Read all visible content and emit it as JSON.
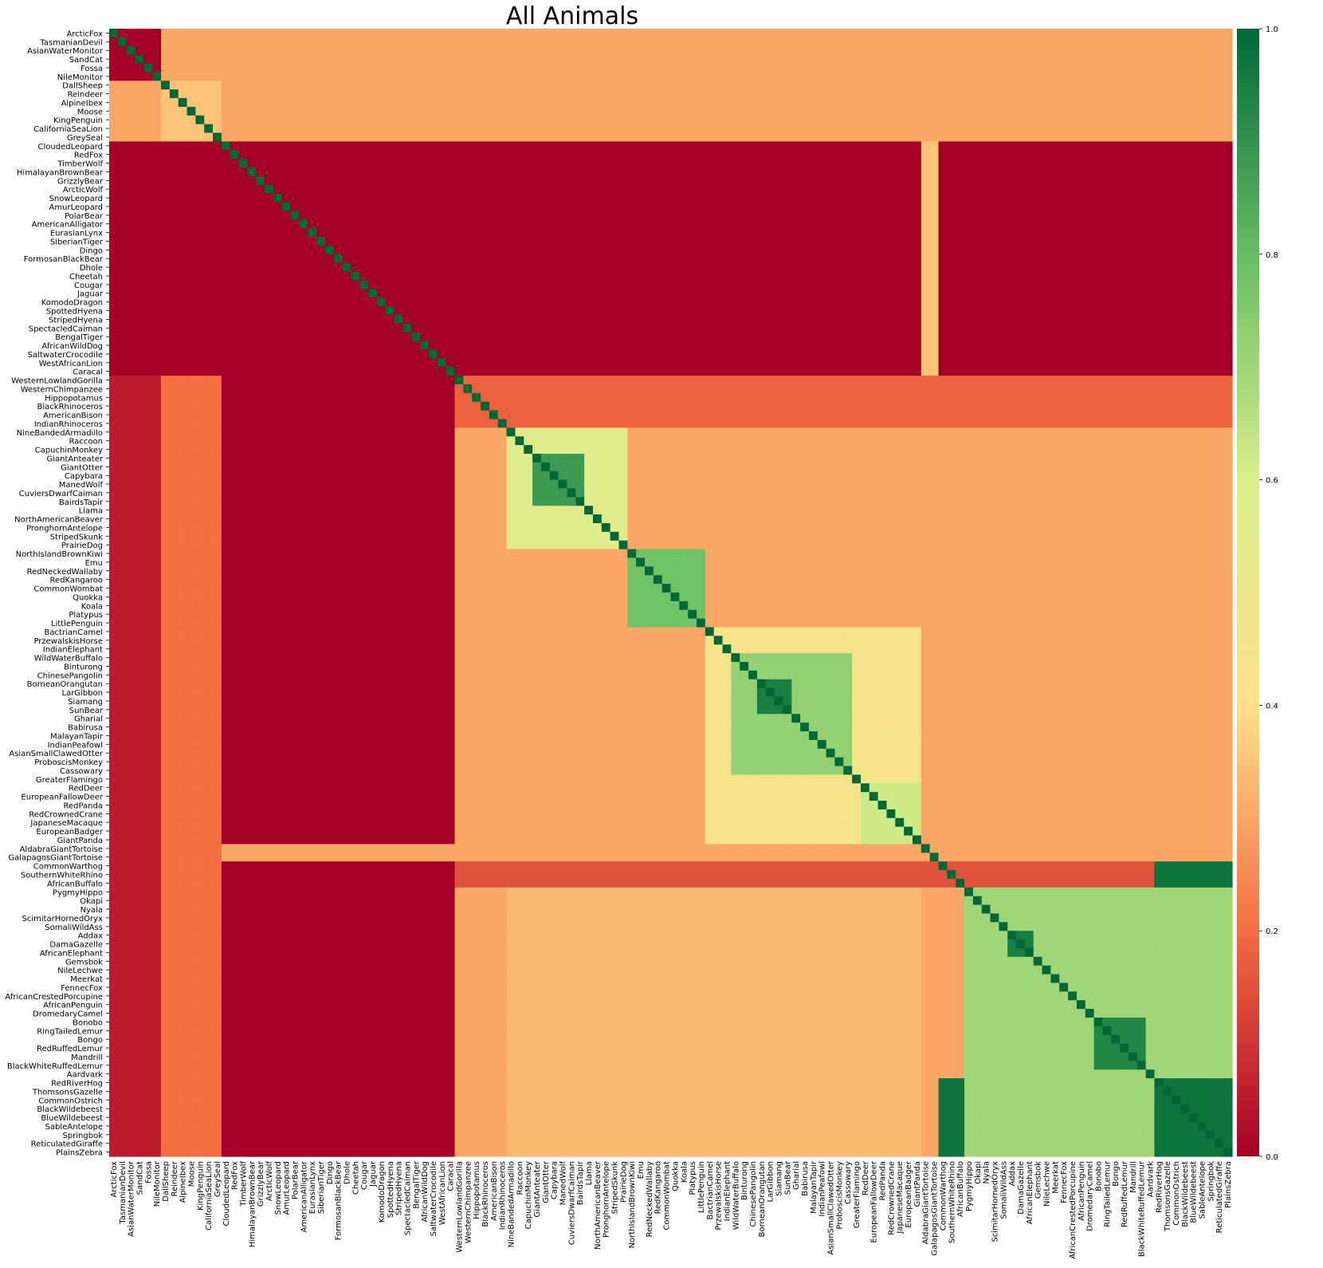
{
  "chart_data": {
    "type": "heatmap",
    "title": "All Animals",
    "xlabel": "",
    "ylabel": "",
    "colormap": "RdYlGn",
    "colorbar": {
      "range": [
        0.0,
        1.0
      ],
      "ticks": [
        "0.0",
        "0.2",
        "0.4",
        "0.6",
        "0.8",
        "1.0"
      ],
      "stops": [
        "#a50026",
        "#f46d43",
        "#fee08b",
        "#d9ef8b",
        "#66bd63",
        "#006837"
      ]
    },
    "row_labels": [
      "ArcticFox",
      "TasmanianDevil",
      "AsianWaterMonitor",
      "SandCat",
      "Fossa",
      "NileMonitor",
      "DallSheep",
      "Reindeer",
      "AlpineIbex",
      "Moose",
      "KingPenguin",
      "CaliforniaSeaLion",
      "GreySeal",
      "CloudedLeopard",
      "RedFox",
      "TimberWolf",
      "HimalayanBrownBear",
      "GrizzlyBear",
      "ArcticWolf",
      "SnowLeopard",
      "AmurLeopard",
      "PolarBear",
      "AmericanAlligator",
      "EurasianLynx",
      "SiberianTiger",
      "Dingo",
      "FormosanBlackBear",
      "Dhole",
      "Cheetah",
      "Cougar",
      "Jaguar",
      "KomodoDragon",
      "SpottedHyena",
      "StripedHyena",
      "SpectacledCaiman",
      "BengalTiger",
      "AfricanWildDog",
      "SaltwaterCrocodile",
      "WestAfricanLion",
      "Caracal",
      "WesternLowlandGorilla",
      "WesternChimpanzee",
      "Hippopotamus",
      "BlackRhinoceros",
      "AmericanBison",
      "IndianRhinoceros",
      "NineBandedArmadillo",
      "Raccoon",
      "CapuchinMonkey",
      "GiantAnteater",
      "GiantOtter",
      "Capybara",
      "ManedWolf",
      "CuviersDwarfCaiman",
      "BairdsTapir",
      "Llama",
      "NorthAmericanBeaver",
      "PronghornAntelope",
      "StripedSkunk",
      "PrairieDog",
      "NorthIslandBrownKiwi",
      "Emu",
      "RedNeckedWallaby",
      "RedKangaroo",
      "CommonWombat",
      "Quokka",
      "Koala",
      "Platypus",
      "LittlePenguin",
      "BactrianCamel",
      "PrzewalskisHorse",
      "IndianElephant",
      "WildWaterBuffalo",
      "Binturong",
      "ChinesePangolin",
      "BorneanOrangutan",
      "LarGibbon",
      "Siamang",
      "SunBear",
      "Gharial",
      "Babirusa",
      "MalayanTapir",
      "IndianPeafowl",
      "AsianSmallClawedOtter",
      "ProboscisMonkey",
      "Cassowary",
      "GreaterFlamingo",
      "RedDeer",
      "EuropeanFallowDeer",
      "RedPanda",
      "RedCrownedCrane",
      "JapaneseMacaque",
      "EuropeanBadger",
      "GiantPanda",
      "AldabraGiantTortoise",
      "GalapagosGiantTortoise",
      "CommonWarthog",
      "SouthernWhiteRhino",
      "AfricanBuffalo",
      "PygmyHippo",
      "Okapi",
      "Nyala",
      "ScimitarHornedOryx",
      "SomaliWildAss",
      "Addax",
      "DamaGazelle",
      "AfricanElephant",
      "Gemsbok",
      "NileLechwe",
      "Meerkat",
      "FennecFox",
      "AfricanCrestedPorcupine",
      "AfricanPenguin",
      "DromedaryCamel",
      "Bonobo",
      "RingTailedLemur",
      "Bongo",
      "RedRuffedLemur",
      "Mandrill",
      "BlackWhiteRuffedLemur",
      "Aardvark",
      "RedRiverHog",
      "ThomsonsGazelle",
      "CommonOstrich",
      "BlackWildebeest",
      "BlueWildebeest",
      "SableAntelope",
      "Springbok",
      "ReticulatedGiraffe",
      "PlainsZebra"
    ],
    "shown_row_labels": [
      "ArcticFox",
      "AsianWaterMonitor",
      "Fossa",
      "DallSheep",
      "AlpineIbex",
      "KingPenguin",
      "GreySeal",
      "RedFox",
      "HimalayanBrownBear",
      "ArcticWolf",
      "AmurLeopard",
      "AmericanAlligator",
      "SiberianTiger",
      "FormosanBlackBear",
      "Cheetah",
      "Jaguar",
      "SpottedHyena",
      "SpectacledCaiman",
      "AfricanWildDog",
      "WestAfricanLion",
      "WesternLowlandGorilla",
      "Hippopotamus",
      "AmericanBison",
      "NineBandedArmadillo",
      "CapuchinMonkey",
      "GiantOtter",
      "ManedWolf",
      "BairdsTapir",
      "NorthAmericanBeaver",
      "StripedSkunk",
      "NorthIslandBrownKiwi",
      "RedNeckedWallaby",
      "CommonWombat",
      "Koala",
      "LittlePenguin",
      "PrzewalskisHorse",
      "WildWaterBuffalo",
      "ChinesePangolin",
      "LarGibbon",
      "SunBear",
      "Babirusa",
      "IndianPeafowl",
      "ProboscisMonkey",
      "GreaterFlamingo",
      "EuropeanFallowDeer",
      "RedCrownedCrane",
      "EuropeanBadger",
      "AldabraGiantTortoise",
      "CommonWarthog",
      "AfricanBuffalo",
      "Okapi",
      "ScimitarHornedOryx",
      "Addax",
      "AfricanElephant",
      "NileLechwe",
      "FennecFox",
      "AfricanPenguin",
      "Bonobo",
      "Bongo",
      "Mandrill",
      "Aardvark",
      "ThomsonsGazelle",
      "BlackWildebeest",
      "SableAntelope",
      "ReticulatedGiraffe",
      "TasmanianDevil",
      "SandCat",
      "NileMonitor",
      "Reindeer",
      "Moose",
      "CaliforniaSeaLion",
      "CloudedLeopard",
      "TimberWolf",
      "GrizzlyBear",
      "SnowLeopard",
      "PolarBear",
      "EurasianLynx",
      "Dingo",
      "Dhole",
      "Cougar",
      "KomodoDragon",
      "StripedHyena",
      "BengalTiger",
      "SaltwaterCrocodile",
      "Caracal",
      "WesternChimpanzee",
      "BlackRhinoceros",
      "IndianRhinoceros",
      "Raccoon",
      "GiantAnteater",
      "Capybara",
      "CuviersDwarfCaiman",
      "Llama",
      "PronghornAntelope",
      "PrairieDog",
      "Emu",
      "RedKangaroo",
      "Quokka",
      "Platypus",
      "BactrianCamel",
      "IndianElephant",
      "Binturong",
      "BorneanOrangutan",
      "Siamang",
      "Gharial",
      "MalayanTapir",
      "AsianSmallClawedOtter",
      "Cassowary",
      "RedDeer",
      "RedPanda",
      "JapaneseMacaque",
      "GiantPanda",
      "GalapagosGiantTortoise",
      "SouthernWhiteRhino",
      "PygmyHippo",
      "Nyala",
      "SomaliWildAss",
      "DamaGazelle",
      "Gemsbok",
      "Meerkat",
      "AfricanCrestedPorcupine",
      "DromedaryCamel",
      "RingTailedLemur",
      "RedRuffedLemur",
      "BlackWhiteRuffedLemur",
      "RedRiverHog",
      "CommonOstrich",
      "BlueWildebeest",
      "Springbok",
      "PlainsZebra"
    ],
    "x_tick_labels": [
      "ArcticFox",
      "TasmanianDevil",
      "AsianWaterMonitor",
      "SandCat",
      "Fossa",
      "NileMonitor",
      "DallSheep",
      "Reindeer",
      "AlpineIbex",
      "Moose",
      "KingPenguin",
      "CaliforniaSeaLion",
      "GreySeal",
      "CloudedLeopard",
      "RedFox",
      "TimberWolf",
      "HimalayanBrownBear",
      "GrizzlyBear",
      "ArcticWolf",
      "SnowLeopard",
      "AmurLeopard",
      "PolarBear",
      "AmericanAlligator",
      "EurasianLynx",
      "SiberianTiger",
      "Dingo",
      "FormosanBlackBear",
      "Dhole",
      "Cheetah",
      "Cougar",
      "Jaguar",
      "KomodoDragon",
      "SpottedHyena",
      "StripedHyena",
      "SpectacledCaiman",
      "BengalTiger",
      "AfricanWildDog",
      "SaltwaterCrocodile",
      "WestAfricanLion",
      "Caracal",
      "WesternLowlandGorilla",
      "WesternChimpanzee",
      "Hippopotamus",
      "BlackRhinoceros",
      "AmericanBison",
      "IndianRhinoceros",
      "NineBandedArmadillo",
      "Raccoon",
      "CapuchinMonkey",
      "GiantAnteater",
      "GiantOtter",
      "Capybara",
      "ManedWolf",
      "CuviersDwarfCaiman",
      "BairdsTapir",
      "Llama",
      "NorthAmericanBeaver",
      "PronghornAntelope",
      "StripedSkunk",
      "PrairieDog",
      "NorthIslandBrownKiwi",
      "Emu",
      "RedNeckedWallaby",
      "RedKangaroo",
      "CommonWombat",
      "Quokka",
      "Koala",
      "Platypus",
      "LittlePenguin",
      "BactrianCamel",
      "PrzewalskisHorse",
      "IndianElephant",
      "WildWaterBuffalo",
      "Binturong",
      "ChinesePangolin",
      "BorneanOrangutan",
      "LarGibbon",
      "Siamang",
      "SunBear",
      "Gharial",
      "Babirusa",
      "MalayanTapir",
      "IndianPeafowl",
      "AsianSmallClawedOtter",
      "ProboscisMonkey",
      "Cassowary",
      "GreaterFlamingo",
      "RedDeer",
      "EuropeanFallowDeer",
      "RedPanda",
      "RedCrownedCrane",
      "JapaneseMacaque",
      "EuropeanBadger",
      "GiantPanda",
      "AldabraGiantTortoise",
      "GalapagosGiantTortoise",
      "CommonWarthog",
      "SouthernWhiteRhino",
      "AfricanBuffalo",
      "PygmyHippo",
      "Okapi",
      "Nyala",
      "ScimitarHornedOryx",
      "SomaliWildAss",
      "Addax",
      "DamaGazelle",
      "AfricanElephant",
      "Gemsbok",
      "NileLechwe",
      "Meerkat",
      "FennecFox",
      "AfricanCrestedPorcupine",
      "AfricanPenguin",
      "DromedaryCamel",
      "Bonobo",
      "RingTailedLemur",
      "Bongo",
      "RedRuffedLemur",
      "Mandrill",
      "BlackWhiteRuffedLemur",
      "Aardvark",
      "RedRiverHog",
      "ThomsonsGazelle",
      "CommonOstrich",
      "BlackWildebeest",
      "BlueWildebeest",
      "SableAntelope",
      "Springbok",
      "ReticulatedGiraffe",
      "PlainsZebra"
    ],
    "diagonal_value": 1.0,
    "blocks": [
      {
        "rows": [
          0,
          5
        ],
        "cols": [
          0,
          5
        ],
        "value": 0.0
      },
      {
        "rows": [
          6,
          12
        ],
        "cols": [
          6,
          12
        ],
        "value": 0.35
      },
      {
        "rows": [
          13,
          39
        ],
        "cols": [
          0,
          39
        ],
        "value": 0.0
      },
      {
        "rows": [
          13,
          39
        ],
        "cols": [
          40,
          93
        ],
        "value": 0.0
      },
      {
        "rows": [
          13,
          39
        ],
        "cols": [
          96,
          129
        ],
        "value": 0.0
      },
      {
        "rows": [
          13,
          39
        ],
        "cols": [
          94,
          95
        ],
        "value": 0.35
      },
      {
        "rows": [
          40,
          45
        ],
        "cols": [
          40,
          129
        ],
        "value": 0.18
      },
      {
        "rows": [
          46,
          59
        ],
        "cols": [
          46,
          59
        ],
        "value": 0.55
      },
      {
        "rows": [
          49,
          54
        ],
        "cols": [
          49,
          54
        ],
        "value": 0.88
      },
      {
        "rows": [
          60,
          68
        ],
        "cols": [
          60,
          68
        ],
        "value": 0.78
      },
      {
        "rows": [
          69,
          93
        ],
        "cols": [
          69,
          93
        ],
        "value": 0.45
      },
      {
        "rows": [
          72,
          85
        ],
        "cols": [
          72,
          85
        ],
        "value": 0.72
      },
      {
        "rows": [
          75,
          78
        ],
        "cols": [
          75,
          78
        ],
        "value": 0.95
      },
      {
        "rows": [
          87,
          93
        ],
        "cols": [
          87,
          93
        ],
        "value": 0.62
      },
      {
        "rows": [
          94,
          95
        ],
        "cols": [
          0,
          129
        ],
        "value": 0.3
      },
      {
        "rows": [
          96,
          98
        ],
        "cols": [
          40,
          129
        ],
        "value": 0.15
      },
      {
        "rows": [
          96,
          98
        ],
        "cols": [
          121,
          129
        ],
        "value": 0.97
      },
      {
        "rows": [
          99,
          129
        ],
        "cols": [
          99,
          129
        ],
        "value": 0.7
      },
      {
        "rows": [
          104,
          106
        ],
        "cols": [
          104,
          106
        ],
        "value": 0.95
      },
      {
        "rows": [
          114,
          119
        ],
        "cols": [
          114,
          119
        ],
        "value": 0.93
      },
      {
        "rows": [
          121,
          129
        ],
        "cols": [
          121,
          129
        ],
        "value": 0.97
      },
      {
        "rows": [
          121,
          129
        ],
        "cols": [
          96,
          98
        ],
        "value": 0.97
      },
      {
        "rows": [
          40,
          129
        ],
        "cols": [
          0,
          5
        ],
        "value": 0.05
      },
      {
        "rows": [
          40,
          129
        ],
        "cols": [
          6,
          12
        ],
        "value": 0.2
      },
      {
        "rows": [
          40,
          93
        ],
        "cols": [
          13,
          39
        ],
        "value": 0.0
      },
      {
        "rows": [
          96,
          129
        ],
        "cols": [
          13,
          39
        ],
        "value": 0.0
      },
      {
        "rows": [
          46,
          93
        ],
        "cols": [
          99,
          129
        ],
        "value": 0.3
      },
      {
        "rows": [
          99,
          129
        ],
        "cols": [
          46,
          93
        ],
        "value": 0.33
      }
    ],
    "default_value": 0.3
  }
}
